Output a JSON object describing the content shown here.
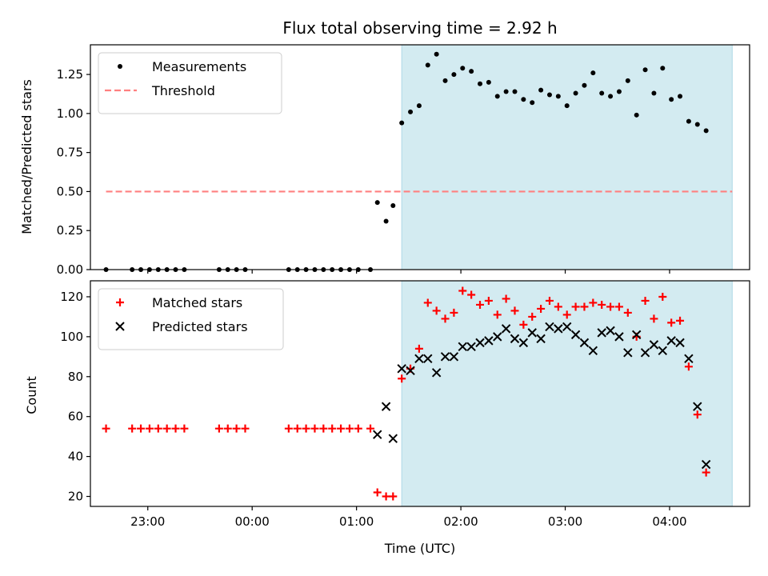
{
  "chart_data": [
    {
      "type": "scatter",
      "title": "Flux total observing time = 2.92 h",
      "xlabel": "",
      "ylabel": "Matched/Predicted stars",
      "xlim": [
        "22:27",
        "04:46"
      ],
      "ylim": [
        0,
        1.44
      ],
      "yticks": [
        "0.00",
        "0.25",
        "0.50",
        "0.75",
        "1.00",
        "1.25"
      ],
      "xticks": [
        "23:00",
        "00:00",
        "01:00",
        "02:00",
        "03:00",
        "04:00"
      ],
      "highlight_span": [
        "01:26",
        "04:36"
      ],
      "highlight_color": "#d3ebf1",
      "legend": {
        "position": "upper left",
        "entries": [
          "Measurements",
          "Threshold"
        ]
      },
      "series": [
        {
          "name": "Measurements",
          "marker": "dot",
          "color": "#000000",
          "points": [
            [
              "22:36",
              0
            ],
            [
              "22:51",
              0
            ],
            [
              "22:56",
              0
            ],
            [
              "23:01",
              0
            ],
            [
              "23:06",
              0
            ],
            [
              "23:11",
              0
            ],
            [
              "23:16",
              0
            ],
            [
              "23:21",
              0
            ],
            [
              "23:41",
              0
            ],
            [
              "23:46",
              0
            ],
            [
              "23:51",
              0
            ],
            [
              "23:56",
              0
            ],
            [
              "00:21",
              0
            ],
            [
              "00:26",
              0
            ],
            [
              "00:31",
              0
            ],
            [
              "00:36",
              0
            ],
            [
              "00:41",
              0
            ],
            [
              "00:46",
              0
            ],
            [
              "00:51",
              0
            ],
            [
              "00:56",
              0
            ],
            [
              "01:01",
              0
            ],
            [
              "01:08",
              0
            ],
            [
              "01:12",
              0.43
            ],
            [
              "01:17",
              0.31
            ],
            [
              "01:21",
              0.41
            ],
            [
              "01:26",
              0.94
            ],
            [
              "01:31",
              1.01
            ],
            [
              "01:36",
              1.05
            ],
            [
              "01:41",
              1.31
            ],
            [
              "01:46",
              1.38
            ],
            [
              "01:51",
              1.21
            ],
            [
              "01:56",
              1.25
            ],
            [
              "02:01",
              1.29
            ],
            [
              "02:06",
              1.27
            ],
            [
              "02:11",
              1.19
            ],
            [
              "02:16",
              1.2
            ],
            [
              "02:21",
              1.11
            ],
            [
              "02:26",
              1.14
            ],
            [
              "02:31",
              1.14
            ],
            [
              "02:36",
              1.09
            ],
            [
              "02:41",
              1.07
            ],
            [
              "02:46",
              1.15
            ],
            [
              "02:51",
              1.12
            ],
            [
              "02:56",
              1.11
            ],
            [
              "03:01",
              1.05
            ],
            [
              "03:06",
              1.13
            ],
            [
              "03:11",
              1.18
            ],
            [
              "03:16",
              1.26
            ],
            [
              "03:21",
              1.13
            ],
            [
              "03:26",
              1.11
            ],
            [
              "03:31",
              1.14
            ],
            [
              "03:36",
              1.21
            ],
            [
              "03:41",
              0.99
            ],
            [
              "03:46",
              1.28
            ],
            [
              "03:51",
              1.13
            ],
            [
              "03:56",
              1.29
            ],
            [
              "04:01",
              1.09
            ],
            [
              "04:06",
              1.11
            ],
            [
              "04:11",
              0.95
            ],
            [
              "04:16",
              0.93
            ],
            [
              "04:21",
              0.89
            ]
          ]
        },
        {
          "name": "Threshold",
          "style": "dashed",
          "color": "#ff8080",
          "y": 0.5,
          "x_range": [
            "22:36",
            "04:36"
          ]
        }
      ]
    },
    {
      "type": "scatter",
      "title": "",
      "xlabel": "Time (UTC)",
      "ylabel": "Count",
      "xlim": [
        "22:27",
        "04:46"
      ],
      "ylim": [
        15,
        128
      ],
      "yticks": [
        "20",
        "40",
        "60",
        "80",
        "100",
        "120"
      ],
      "xticks": [
        "23:00",
        "00:00",
        "01:00",
        "02:00",
        "03:00",
        "04:00"
      ],
      "highlight_span": [
        "01:26",
        "04:36"
      ],
      "highlight_color": "#d3ebf1",
      "legend": {
        "position": "upper left",
        "entries": [
          "Matched stars",
          "Predicted stars"
        ]
      },
      "series": [
        {
          "name": "Matched stars",
          "marker": "plus",
          "color": "#ff0000",
          "points": [
            [
              "22:36",
              54
            ],
            [
              "22:51",
              54
            ],
            [
              "22:56",
              54
            ],
            [
              "23:01",
              54
            ],
            [
              "23:06",
              54
            ],
            [
              "23:11",
              54
            ],
            [
              "23:16",
              54
            ],
            [
              "23:21",
              54
            ],
            [
              "23:41",
              54
            ],
            [
              "23:46",
              54
            ],
            [
              "23:51",
              54
            ],
            [
              "23:56",
              54
            ],
            [
              "00:21",
              54
            ],
            [
              "00:26",
              54
            ],
            [
              "00:31",
              54
            ],
            [
              "00:36",
              54
            ],
            [
              "00:41",
              54
            ],
            [
              "00:46",
              54
            ],
            [
              "00:51",
              54
            ],
            [
              "00:56",
              54
            ],
            [
              "01:01",
              54
            ],
            [
              "01:08",
              54
            ],
            [
              "01:12",
              22
            ],
            [
              "01:17",
              20
            ],
            [
              "01:21",
              20
            ],
            [
              "01:26",
              79
            ],
            [
              "01:31",
              84
            ],
            [
              "01:36",
              94
            ],
            [
              "01:41",
              117
            ],
            [
              "01:46",
              113
            ],
            [
              "01:51",
              109
            ],
            [
              "01:56",
              112
            ],
            [
              "02:01",
              123
            ],
            [
              "02:06",
              121
            ],
            [
              "02:11",
              116
            ],
            [
              "02:16",
              118
            ],
            [
              "02:21",
              111
            ],
            [
              "02:26",
              119
            ],
            [
              "02:31",
              113
            ],
            [
              "02:36",
              106
            ],
            [
              "02:41",
              110
            ],
            [
              "02:46",
              114
            ],
            [
              "02:51",
              118
            ],
            [
              "02:56",
              115
            ],
            [
              "03:01",
              111
            ],
            [
              "03:06",
              115
            ],
            [
              "03:11",
              115
            ],
            [
              "03:16",
              117
            ],
            [
              "03:21",
              116
            ],
            [
              "03:26",
              115
            ],
            [
              "03:31",
              115
            ],
            [
              "03:36",
              112
            ],
            [
              "03:41",
              100
            ],
            [
              "03:46",
              118
            ],
            [
              "03:51",
              109
            ],
            [
              "03:56",
              120
            ],
            [
              "04:01",
              107
            ],
            [
              "04:06",
              108
            ],
            [
              "04:11",
              85
            ],
            [
              "04:16",
              61
            ],
            [
              "04:21",
              32
            ]
          ]
        },
        {
          "name": "Predicted stars",
          "marker": "x",
          "color": "#000000",
          "points": [
            [
              "01:12",
              51
            ],
            [
              "01:17",
              65
            ],
            [
              "01:21",
              49
            ],
            [
              "01:26",
              84
            ],
            [
              "01:31",
              83
            ],
            [
              "01:36",
              89
            ],
            [
              "01:41",
              89
            ],
            [
              "01:46",
              82
            ],
            [
              "01:51",
              90
            ],
            [
              "01:56",
              90
            ],
            [
              "02:01",
              95
            ],
            [
              "02:06",
              95
            ],
            [
              "02:11",
              97
            ],
            [
              "02:16",
              98
            ],
            [
              "02:21",
              100
            ],
            [
              "02:26",
              104
            ],
            [
              "02:31",
              99
            ],
            [
              "02:36",
              97
            ],
            [
              "02:41",
              102
            ],
            [
              "02:46",
              99
            ],
            [
              "02:51",
              105
            ],
            [
              "02:56",
              104
            ],
            [
              "03:01",
              105
            ],
            [
              "03:06",
              101
            ],
            [
              "03:11",
              97
            ],
            [
              "03:16",
              93
            ],
            [
              "03:21",
              102
            ],
            [
              "03:26",
              103
            ],
            [
              "03:31",
              100
            ],
            [
              "03:36",
              92
            ],
            [
              "03:41",
              101
            ],
            [
              "03:46",
              92
            ],
            [
              "03:51",
              96
            ],
            [
              "03:56",
              93
            ],
            [
              "04:01",
              98
            ],
            [
              "04:06",
              97
            ],
            [
              "04:11",
              89
            ],
            [
              "04:16",
              65
            ],
            [
              "04:21",
              36
            ]
          ]
        }
      ]
    }
  ]
}
